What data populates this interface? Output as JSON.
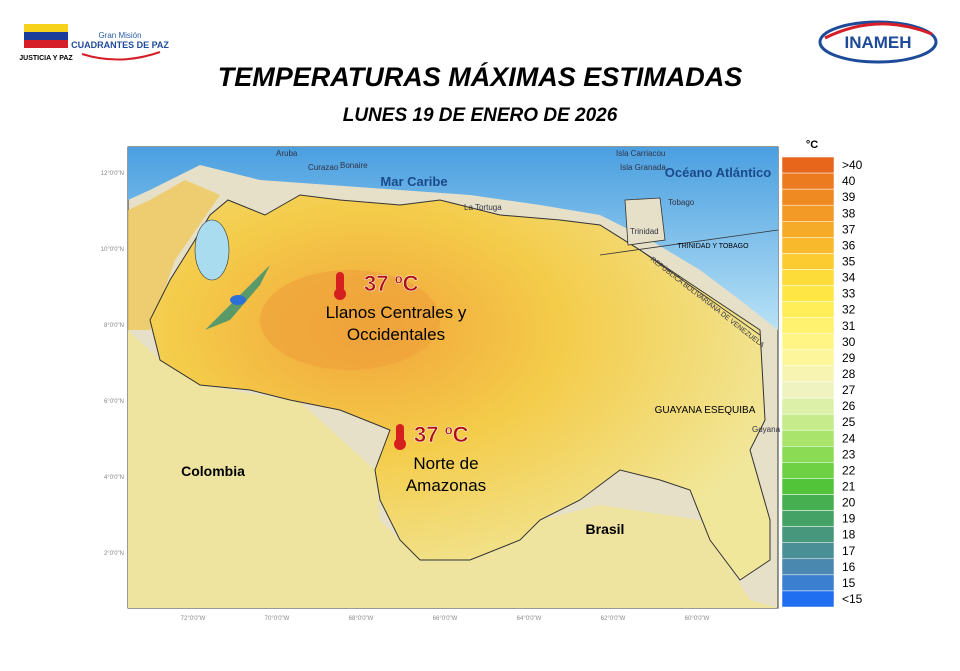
{
  "header": {
    "logo_left": "JUSTICIA Y PAZ",
    "logo_mid_small": "Gran Misión",
    "logo_mid": "CUADRANTES DE PAZ",
    "logo_right": "INAMEH",
    "title": "TEMPERATURAS MÁXIMAS ESTIMADAS",
    "subtitle": "LUNES 19 DE ENERO DE 2026"
  },
  "map": {
    "lat_labels": [
      "12°0'0\"N",
      "10°0'0\"N",
      "8°0'0\"N",
      "6°0'0\"N",
      "4°0'0\"N",
      "2°0'0\"N"
    ],
    "lon_labels": [
      "72°0'0\"W",
      "70°0'0\"W",
      "68°0'0\"W",
      "66°0'0\"W",
      "64°0'0\"W",
      "62°0'0\"W",
      "60°0'0\"W"
    ],
    "places": {
      "sea": "Mar Caribe",
      "ocean": "Océano Atlántico",
      "colombia": "Colombia",
      "brasil": "Brasil",
      "esequiba": "GUAYANA ESEQUIBA",
      "tt": "TRINIDAD Y TOBAGO",
      "aruba": "Aruba",
      "curazao": "Curazao",
      "bonaire": "Bonaire",
      "tortuga": "La Tortuga",
      "carriacou": "Isla Carriacou",
      "granada": "Isla Granada",
      "tobago": "Tobago",
      "trinidad": "Trinidad",
      "guyana": "Guyana",
      "venezuela": "REPÚBLICA BOLIVARIANA DE VENEZUELA"
    },
    "callouts": [
      {
        "temp": "37 ºC",
        "region": "Llanos Centrales y",
        "region2": "Occidentales"
      },
      {
        "temp": "37 ºC",
        "region": "Norte de",
        "region2": "Amazonas"
      }
    ]
  },
  "legend": {
    "unit": "°C",
    "items": [
      {
        "label": ">40",
        "color": "#e8661c"
      },
      {
        "label": "40",
        "color": "#ec7a1f"
      },
      {
        "label": "39",
        "color": "#ef8a22"
      },
      {
        "label": "38",
        "color": "#f29a25"
      },
      {
        "label": "37",
        "color": "#f5aa28"
      },
      {
        "label": "36",
        "color": "#f8ba2c"
      },
      {
        "label": "35",
        "color": "#fbcb30"
      },
      {
        "label": "34",
        "color": "#fddb38"
      },
      {
        "label": "33",
        "color": "#fee645"
      },
      {
        "label": "32",
        "color": "#ffee58"
      },
      {
        "label": "31",
        "color": "#fff26e"
      },
      {
        "label": "30",
        "color": "#fff585"
      },
      {
        "label": "29",
        "color": "#fdf69b"
      },
      {
        "label": "28",
        "color": "#f6f4b0"
      },
      {
        "label": "27",
        "color": "#eef3bf"
      },
      {
        "label": "26",
        "color": "#ddf0a8"
      },
      {
        "label": "25",
        "color": "#c6eb8a"
      },
      {
        "label": "24",
        "color": "#a9e46c"
      },
      {
        "label": "23",
        "color": "#8bdb55"
      },
      {
        "label": "22",
        "color": "#6ed144"
      },
      {
        "label": "21",
        "color": "#52c43a"
      },
      {
        "label": "20",
        "color": "#46b050"
      },
      {
        "label": "19",
        "color": "#45a266"
      },
      {
        "label": "18",
        "color": "#46977c"
      },
      {
        "label": "17",
        "color": "#4a8f95"
      },
      {
        "label": "16",
        "color": "#4a88b0"
      },
      {
        "label": "15",
        "color": "#3b7fd0"
      },
      {
        "label": "<15",
        "color": "#1f6ff0"
      }
    ]
  }
}
